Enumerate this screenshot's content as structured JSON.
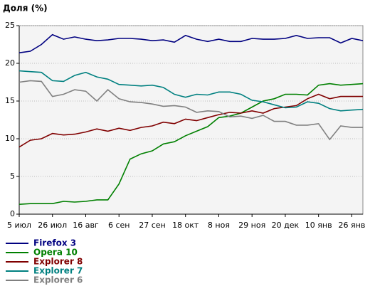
{
  "chart_data": {
    "type": "line",
    "ylabel": "Доля (%)",
    "categories": [
      "5 июл",
      null,
      null,
      "26 июл",
      null,
      null,
      "16 авг",
      null,
      null,
      "6 сен",
      null,
      null,
      "27 сен",
      null,
      null,
      "18 окт",
      null,
      null,
      "8 ноя",
      null,
      null,
      "29 ноя",
      null,
      null,
      "20 дек",
      null,
      null,
      "10 янв",
      null,
      null,
      "26 янв",
      null
    ],
    "ylim": [
      0,
      25
    ],
    "yticks": [
      0,
      5,
      10,
      15,
      20,
      25
    ],
    "grid": true,
    "legend": "bottom",
    "series": [
      {
        "name": "Firefox 3",
        "color": "#000080",
        "values": [
          21.4,
          21.6,
          22.5,
          23.8,
          23.2,
          23.5,
          23.2,
          23.0,
          23.1,
          23.3,
          23.3,
          23.2,
          23.0,
          23.1,
          22.8,
          23.7,
          23.2,
          22.9,
          23.2,
          22.9,
          22.9,
          23.3,
          23.2,
          23.2,
          23.3,
          23.7,
          23.3,
          23.4,
          23.4,
          22.7,
          23.3,
          23.0
        ]
      },
      {
        "name": "Opera 10",
        "color": "#008000",
        "values": [
          1.3,
          1.4,
          1.4,
          1.4,
          1.7,
          1.6,
          1.7,
          1.9,
          1.9,
          4.0,
          7.3,
          8.0,
          8.4,
          9.3,
          9.6,
          10.4,
          11.0,
          11.6,
          12.8,
          13.0,
          13.4,
          14.2,
          15.0,
          15.3,
          15.9,
          15.9,
          15.8,
          17.1,
          17.3,
          17.1,
          17.2,
          17.3
        ]
      },
      {
        "name": "Explorer 8",
        "color": "#800000",
        "values": [
          8.9,
          9.8,
          10.0,
          10.7,
          10.5,
          10.6,
          10.9,
          11.3,
          11.0,
          11.4,
          11.1,
          11.5,
          11.7,
          12.2,
          12.0,
          12.6,
          12.4,
          12.8,
          13.2,
          13.5,
          13.4,
          13.7,
          13.4,
          14.0,
          14.2,
          14.4,
          15.3,
          15.9,
          15.3,
          15.6,
          15.6,
          15.6
        ]
      },
      {
        "name": "Explorer 7",
        "color": "#008080",
        "values": [
          19.0,
          18.9,
          18.8,
          17.7,
          17.6,
          18.4,
          18.8,
          18.2,
          17.9,
          17.2,
          17.1,
          17.0,
          17.1,
          16.8,
          15.9,
          15.5,
          15.9,
          15.8,
          16.2,
          16.2,
          15.9,
          15.1,
          14.9,
          14.5,
          14.1,
          14.2,
          14.9,
          14.7,
          14.0,
          13.7,
          13.8,
          13.9
        ]
      },
      {
        "name": "Explorer 6",
        "color": "#808080",
        "values": [
          17.5,
          17.7,
          17.6,
          15.6,
          15.9,
          16.5,
          16.3,
          15.0,
          16.5,
          15.3,
          14.9,
          14.8,
          14.6,
          14.3,
          14.4,
          14.2,
          13.5,
          13.7,
          13.6,
          12.9,
          13.0,
          12.7,
          13.1,
          12.3,
          12.3,
          11.8,
          11.8,
          12.0,
          9.9,
          11.7,
          11.5,
          11.5
        ]
      }
    ]
  }
}
